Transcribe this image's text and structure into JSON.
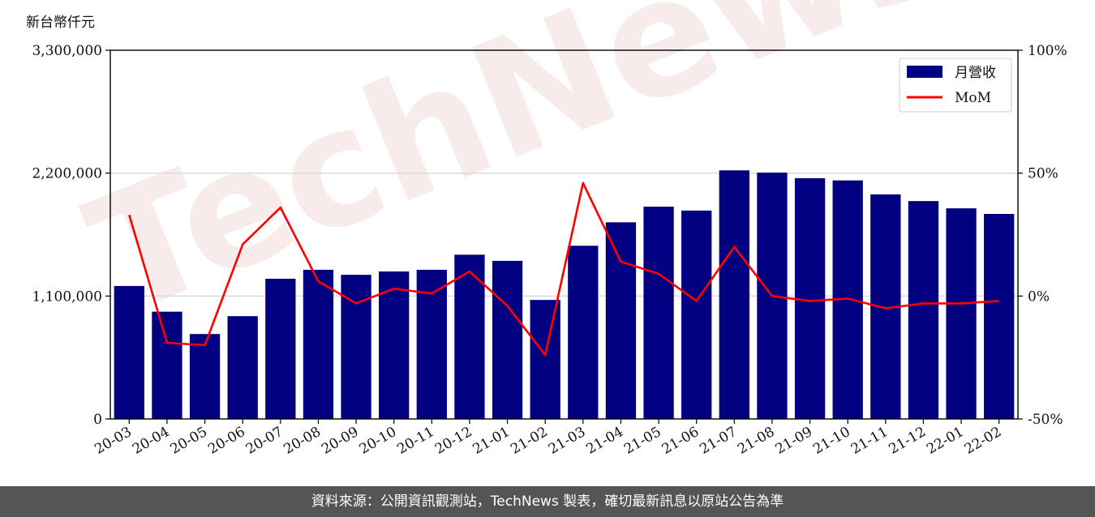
{
  "left_unit": "新台幣仟元",
  "footer_text": "資料來源：公開資訊觀測站，TechNews 製表，確切最新訊息以原站公告為準",
  "watermark_text": "TechNews",
  "colors": {
    "bar": "#000080",
    "line": "#ff0000",
    "grid": "#d9d9d9",
    "footer_bg": "#555555"
  },
  "chart_data": {
    "type": "bar",
    "categories": [
      "20-03",
      "20-04",
      "20-05",
      "20-06",
      "20-07",
      "20-08",
      "20-09",
      "20-10",
      "20-11",
      "20-12",
      "21-01",
      "21-02",
      "21-03",
      "21-04",
      "21-05",
      "21-06",
      "21-07",
      "21-08",
      "21-09",
      "21-10",
      "21-11",
      "21-12",
      "22-01",
      "22-02"
    ],
    "series": [
      {
        "name": "月營收",
        "axis": "left",
        "type": "bar",
        "values": [
          1190000,
          960000,
          760000,
          920000,
          1255000,
          1335000,
          1290000,
          1320000,
          1335000,
          1470000,
          1415000,
          1065000,
          1550000,
          1760000,
          1900000,
          1865000,
          2225000,
          2205000,
          2155000,
          2135000,
          2010000,
          1950000,
          1885000,
          1835000
        ]
      },
      {
        "name": "MoM",
        "axis": "right",
        "type": "line",
        "values": [
          33,
          -19,
          -20,
          21,
          36,
          6,
          -3,
          3,
          1,
          10,
          -4,
          -24,
          46,
          14,
          9,
          -2,
          20,
          0,
          -2,
          -1,
          -5,
          -3,
          -3,
          -2
        ]
      }
    ],
    "left_ylim": [
      0,
      3300000
    ],
    "left_ticks": [
      "0",
      "1,100,000",
      "2,200,000",
      "3,300,000"
    ],
    "right_ylim": [
      -50,
      100
    ],
    "right_ticks": [
      "-50%",
      "0%",
      "50%",
      "100%"
    ],
    "grid": true,
    "legend_position": "top-right"
  }
}
